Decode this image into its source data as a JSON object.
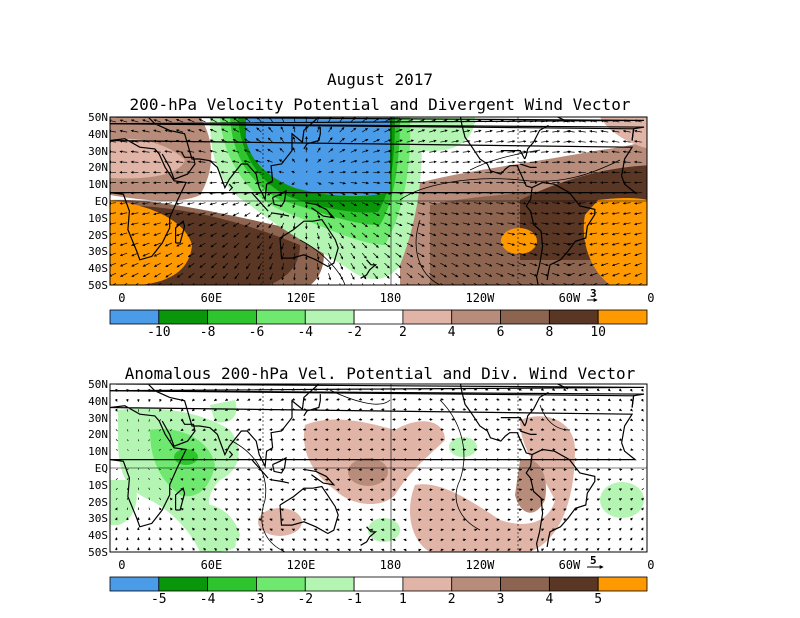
{
  "header": {
    "month": "August 2017",
    "top_title": "200-hPa Velocity Potential and Divergent Wind Vector",
    "bottom_title": "Anomalous 200-hPa Vel. Potential and Div. Wind Vector"
  },
  "axes": {
    "lat_labels": [
      "50N",
      "40N",
      "30N",
      "20N",
      "10N",
      "EQ",
      "10S",
      "20S",
      "30S",
      "40S",
      "50S"
    ],
    "lon_labels": [
      "0",
      "60E",
      "120E",
      "180",
      "120W",
      "60W",
      "0"
    ]
  },
  "top_panel": {
    "vector_scale": "3",
    "colorbar": {
      "colors": [
        "#4a9be8",
        "#0a960a",
        "#2ec42e",
        "#6ee86e",
        "#b4f5b4",
        "#ffffff",
        "#e0b4a6",
        "#b88c7a",
        "#8c6450",
        "#5a3624",
        "#ff9900"
      ],
      "labels": [
        "-10",
        "-8",
        "-6",
        "-4",
        "-2",
        "2",
        "4",
        "6",
        "8",
        "10"
      ]
    }
  },
  "bottom_panel": {
    "vector_scale": "5",
    "colorbar": {
      "colors": [
        "#4a9be8",
        "#0a960a",
        "#2ec42e",
        "#6ee86e",
        "#b4f5b4",
        "#ffffff",
        "#e0b4a6",
        "#b88c7a",
        "#8c6450",
        "#5a3624",
        "#ff9900"
      ],
      "labels": [
        "-5",
        "-4",
        "-3",
        "-2",
        "-1",
        "1",
        "2",
        "3",
        "4",
        "5"
      ]
    }
  },
  "colors": {
    "orange": "#ff9900",
    "blue": "#4a9be8",
    "dark_green": "#0a960a",
    "green": "#2ec42e",
    "light_green": "#6ee86e",
    "pale_green": "#b4f5b4",
    "pale_brown": "#e0b4a6",
    "brown": "#b88c7a",
    "dark_brown": "#8c6450",
    "darkest_brown": "#5a3624"
  }
}
